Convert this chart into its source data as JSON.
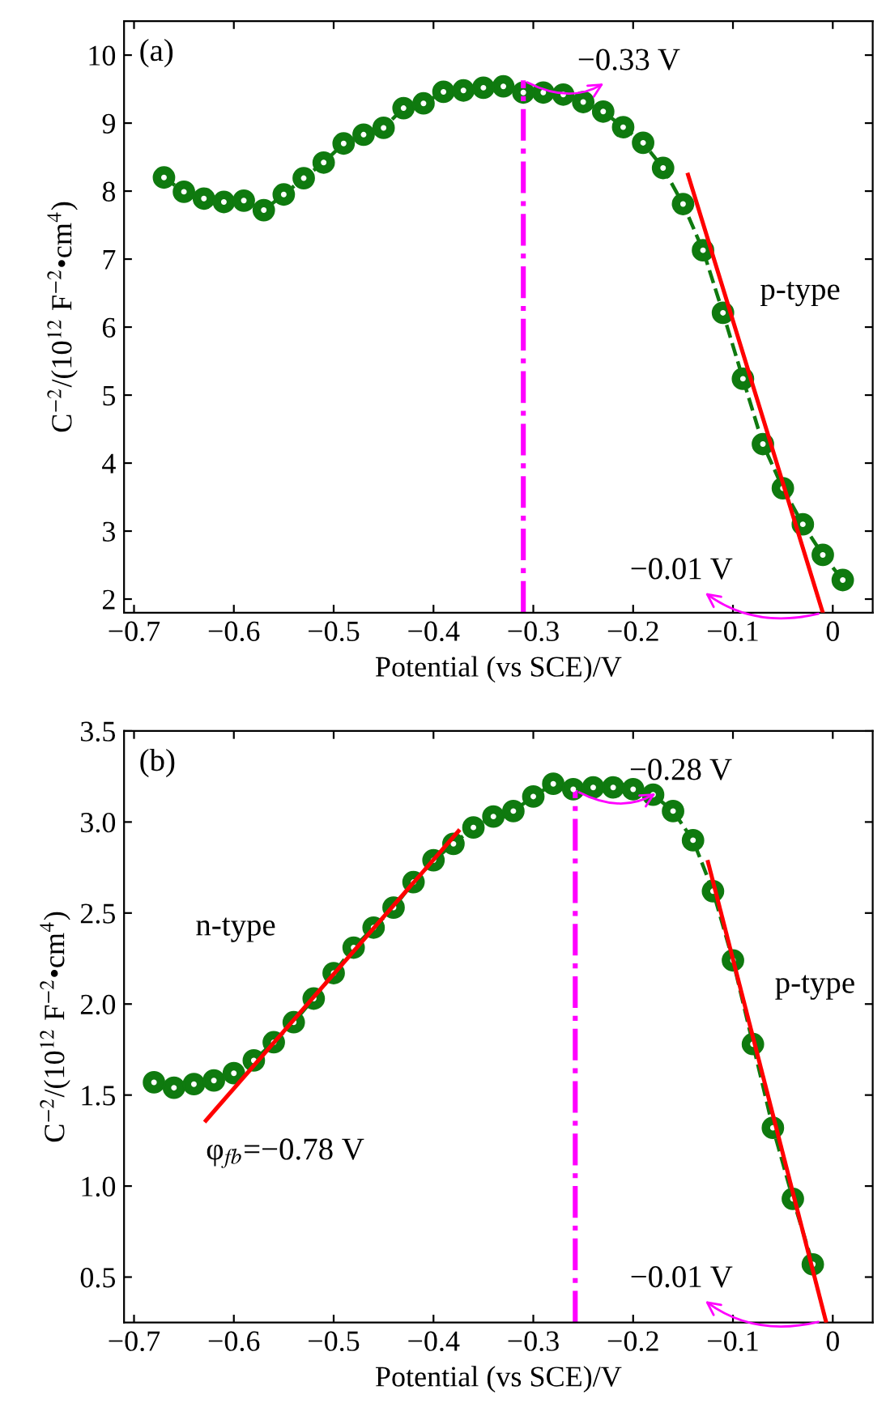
{
  "chart_data": [
    {
      "type": "line",
      "xlabel": "Potential (vs SCE)/V",
      "ylabel": "C$^{−2}$/(10$^{12}$ F$^{−2}$•cm$^{4}$)",
      "x": [
        -0.67,
        -0.65,
        -0.63,
        -0.61,
        -0.59,
        -0.57,
        -0.55,
        -0.53,
        -0.51,
        -0.49,
        -0.47,
        -0.45,
        -0.43,
        -0.41,
        -0.39,
        -0.37,
        -0.35,
        -0.33,
        -0.31,
        -0.29,
        -0.27,
        -0.25,
        -0.23,
        -0.21,
        -0.19,
        -0.17,
        -0.15,
        -0.13,
        -0.11,
        -0.09,
        -0.07,
        -0.05,
        -0.03,
        -0.01,
        0.01
      ],
      "series": [
        {
          "color": "#0f7a0f",
          "marker": "circle",
          "line_style": "dashed",
          "values": [
            8.2,
            7.99,
            7.89,
            7.84,
            7.86,
            7.72,
            7.95,
            8.19,
            8.42,
            8.7,
            8.83,
            8.93,
            9.22,
            9.29,
            9.46,
            9.48,
            9.52,
            9.54,
            9.45,
            9.45,
            9.42,
            9.31,
            9.17,
            8.94,
            8.71,
            8.34,
            7.81,
            7.13,
            6.21,
            5.24,
            4.28,
            3.63,
            3.1,
            2.65,
            2.28
          ]
        },
        {
          "type": "line",
          "name": "p-type",
          "color": "#ff0000",
          "marker": "none",
          "line_style": "solid",
          "x": [
            -0.145,
            -0.01
          ],
          "values": [
            8.24,
            1.8
          ]
        }
      ],
      "ref_lines": [
        {
          "axis": "x",
          "value": -0.31,
          "label": "−0.33 V",
          "color": "#ff00ff",
          "line_style": "dashdot"
        }
      ],
      "annotations": [
        "(a)",
        {
          "text": "−0.01 V",
          "x": -0.01,
          "y": 1.8
        }
      ],
      "xlim": [
        -0.71,
        0.04
      ],
      "xticks": [
        -0.7,
        -0.6,
        -0.5,
        -0.4,
        -0.3,
        -0.2,
        -0.1,
        0
      ],
      "ylim": [
        1.8,
        10.5
      ],
      "yticks": [
        2,
        3,
        4,
        5,
        6,
        7,
        8,
        9,
        10
      ],
      "grid": false,
      "legend": false
    },
    {
      "type": "line",
      "xlabel": "Potential (vs SCE)/V",
      "ylabel": "C$^{−2}$/(10$^{12}$ F$^{−2}$•cm$^{4}$)",
      "x": [
        -0.68,
        -0.66,
        -0.64,
        -0.62,
        -0.6,
        -0.58,
        -0.56,
        -0.54,
        -0.52,
        -0.5,
        -0.48,
        -0.46,
        -0.44,
        -0.42,
        -0.4,
        -0.38,
        -0.36,
        -0.34,
        -0.32,
        -0.3,
        -0.28,
        -0.26,
        -0.24,
        -0.22,
        -0.2,
        -0.18,
        -0.16,
        -0.14,
        -0.12,
        -0.1,
        -0.08,
        -0.06,
        -0.04,
        -0.02
      ],
      "series": [
        {
          "color": "#0f7a0f",
          "marker": "circle",
          "line_style": "dashed",
          "values": [
            1.57,
            1.54,
            1.56,
            1.58,
            1.62,
            1.69,
            1.79,
            1.9,
            2.03,
            2.17,
            2.31,
            2.42,
            2.53,
            2.67,
            2.79,
            2.88,
            2.97,
            3.03,
            3.06,
            3.14,
            3.21,
            3.18,
            3.19,
            3.19,
            3.18,
            3.15,
            3.06,
            2.9,
            2.62,
            2.24,
            1.78,
            1.32,
            0.93,
            0.57
          ]
        },
        {
          "type": "line",
          "name": "n-type",
          "color": "#ff0000",
          "marker": "none",
          "line_style": "solid",
          "x": [
            -0.628,
            -0.375
          ],
          "values": [
            1.36,
            2.95
          ]
        },
        {
          "type": "line",
          "name": "p-type",
          "color": "#ff0000",
          "marker": "none",
          "line_style": "solid",
          "x": [
            -0.125,
            -0.007
          ],
          "values": [
            2.78,
            0.26
          ]
        }
      ],
      "ref_lines": [
        {
          "axis": "x",
          "value": -0.258,
          "label": "−0.28 V",
          "color": "#ff00ff",
          "line_style": "dashdot"
        }
      ],
      "annotations": [
        "(b)",
        "φ$_{fb}$=−0.78 V",
        {
          "text": "−0.01 V",
          "x": -0.01,
          "y": 0.26
        }
      ],
      "xlim": [
        -0.71,
        0.04
      ],
      "xticks": [
        -0.7,
        -0.6,
        -0.5,
        -0.4,
        -0.3,
        -0.2,
        -0.1,
        0
      ],
      "ylim": [
        0.25,
        3.5
      ],
      "yticks": [
        0.5,
        {
          "value": 1,
          "label": "1.0"
        },
        1.5,
        {
          "value": 2,
          "label": "2.0"
        },
        2.5,
        {
          "value": 3,
          "label": "3.0"
        },
        3.5
      ],
      "grid": false,
      "legend": false
    }
  ]
}
